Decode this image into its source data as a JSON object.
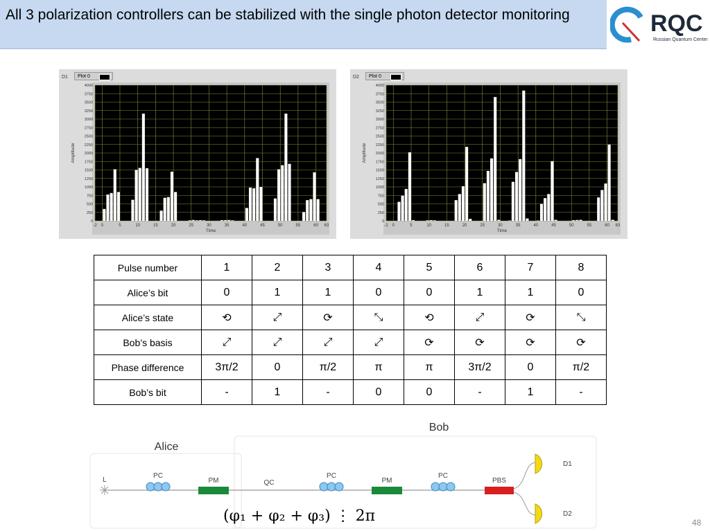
{
  "slide": {
    "title": "All 3 polarization controllers can be stabilized with the single photon detector monitoring",
    "page_number": "48",
    "logo": {
      "text": "RQC",
      "subtitle": "Russian Quantum Center"
    }
  },
  "chart_data": [
    {
      "type": "bar",
      "panel_label": "D1",
      "legend": "Plot 0",
      "xlabel": "Time",
      "ylabel": "Amplitude",
      "xlim": [
        -2,
        63
      ],
      "ylim": [
        0,
        4000
      ],
      "xticks": [
        -2,
        0,
        5,
        10,
        15,
        20,
        25,
        30,
        35,
        40,
        45,
        50,
        55,
        60,
        63
      ],
      "yticks": [
        0,
        250,
        500,
        750,
        1000,
        1250,
        1500,
        1750,
        2000,
        2250,
        2500,
        2750,
        3000,
        3250,
        3500,
        3750,
        4000
      ],
      "grid": true,
      "x": [
        0,
        1,
        2,
        3,
        4,
        8,
        9,
        10,
        11,
        12,
        16,
        17,
        18,
        19,
        20,
        24,
        25,
        26,
        27,
        28,
        33,
        34,
        35,
        36,
        40,
        41,
        42,
        43,
        44,
        48,
        49,
        50,
        51,
        52,
        56,
        57,
        58,
        59,
        60
      ],
      "values": [
        350,
        775,
        820,
        1520,
        850,
        620,
        1500,
        1560,
        3160,
        1550,
        300,
        680,
        700,
        1450,
        850,
        15,
        25,
        15,
        20,
        15,
        20,
        20,
        25,
        15,
        380,
        980,
        960,
        1850,
        1000,
        660,
        1520,
        1640,
        3160,
        1680,
        260,
        610,
        640,
        1430,
        640
      ],
      "colors": {
        "background": "#000000",
        "bars": "#ffffff",
        "grid": "#8a8a3a"
      }
    },
    {
      "type": "bar",
      "panel_label": "D2",
      "legend": "Plot 0",
      "xlabel": "Time",
      "ylabel": "Amplitude",
      "xlim": [
        -2,
        63
      ],
      "ylim": [
        0,
        4000
      ],
      "xticks": [
        -2,
        0,
        5,
        10,
        15,
        20,
        25,
        30,
        35,
        40,
        45,
        50,
        55,
        60,
        63
      ],
      "yticks": [
        0,
        250,
        500,
        750,
        1000,
        1250,
        1500,
        1750,
        2000,
        2250,
        2500,
        2750,
        3000,
        3250,
        3500,
        3750,
        4000
      ],
      "grid": true,
      "x": [
        1,
        2,
        3,
        4,
        5,
        9,
        10,
        11,
        17,
        18,
        19,
        20,
        21,
        25,
        26,
        27,
        28,
        29,
        32,
        33,
        34,
        35,
        36,
        37,
        40,
        41,
        42,
        43,
        44,
        45,
        50,
        51,
        52,
        57,
        58,
        59,
        60,
        61
      ],
      "values": [
        560,
        740,
        940,
        2020,
        20,
        15,
        20,
        15,
        610,
        790,
        1020,
        2180,
        60,
        1110,
        1470,
        1840,
        3650,
        30,
        10,
        1150,
        1440,
        1820,
        3840,
        70,
        10,
        500,
        670,
        790,
        1760,
        30,
        20,
        25,
        30,
        690,
        910,
        1100,
        2250,
        30
      ],
      "colors": {
        "background": "#000000",
        "bars": "#ffffff",
        "grid": "#8a8a3a"
      }
    }
  ],
  "table": {
    "rows": [
      {
        "label": "Pulse number",
        "cells": [
          "1",
          "2",
          "3",
          "4",
          "5",
          "6",
          "7",
          "8"
        ]
      },
      {
        "label": "Alice’s bit",
        "cells": [
          "0",
          "1",
          "1",
          "0",
          "0",
          "1",
          "1",
          "0"
        ]
      },
      {
        "label": "Alice’s state",
        "cells": [
          "⟲",
          "⤢",
          "⟳",
          "⤡",
          "⟲",
          "⤢",
          "⟳",
          "⤡"
        ]
      },
      {
        "label": "Bob’s basis",
        "cells": [
          "⤢",
          "⤢",
          "⤢",
          "⤢",
          "⟳",
          "⟳",
          "⟳",
          "⟳"
        ]
      },
      {
        "label": "Phase difference",
        "cells": [
          "3π/2",
          "0",
          "π/2",
          "π",
          "π",
          "3π/2",
          "0",
          "π/2"
        ]
      },
      {
        "label": "Bob’s bit",
        "cells": [
          "-",
          "1",
          "-",
          "0",
          "0",
          "-",
          "1",
          "-"
        ]
      }
    ]
  },
  "diagram": {
    "alice_label": "Alice",
    "bob_label": "Bob",
    "laser": "L",
    "pc": "PC",
    "pm": "PM",
    "qc": "QC",
    "pbs": "PBS",
    "d1": "D1",
    "d2": "D2",
    "formula": "(φ₁ + φ₂ + φ₃) ⋮ 2π",
    "colors": {
      "pc": "#8cc8f0",
      "pm": "#1a8a3a",
      "pbs": "#d81e1e",
      "detector": "#f2d81a"
    }
  }
}
